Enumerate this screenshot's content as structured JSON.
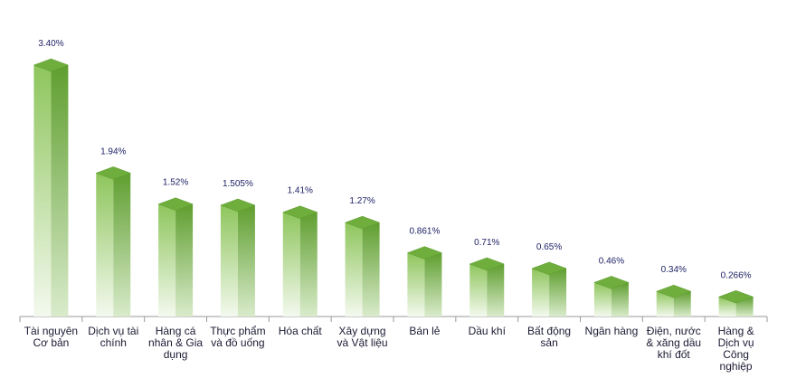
{
  "chart_data": {
    "type": "bar",
    "categories": [
      "Tài nguyên Cơ bản",
      "Dịch vụ tài chính",
      "Hàng cá nhân & Gia dụng",
      "Thực phẩm và đồ uống",
      "Hóa chất",
      "Xây dựng và Vật liệu",
      "Bán lẻ",
      "Dầu khí",
      "Bất động sản",
      "Ngân hàng",
      "Điện, nước & xăng dầu khí đốt",
      "Hàng & Dịch vụ Công nghiệp"
    ],
    "values": [
      3.4,
      1.94,
      1.52,
      1.505,
      1.41,
      1.27,
      0.861,
      0.71,
      0.65,
      0.46,
      0.34,
      0.266
    ],
    "value_labels": [
      "3.40%",
      "1.94%",
      "1.52%",
      "1.505%",
      "1.41%",
      "1.27%",
      "0.861%",
      "0.71%",
      "0.65%",
      "0.46%",
      "0.34%",
      "0.266%"
    ],
    "color": "#6fae3c"
  }
}
